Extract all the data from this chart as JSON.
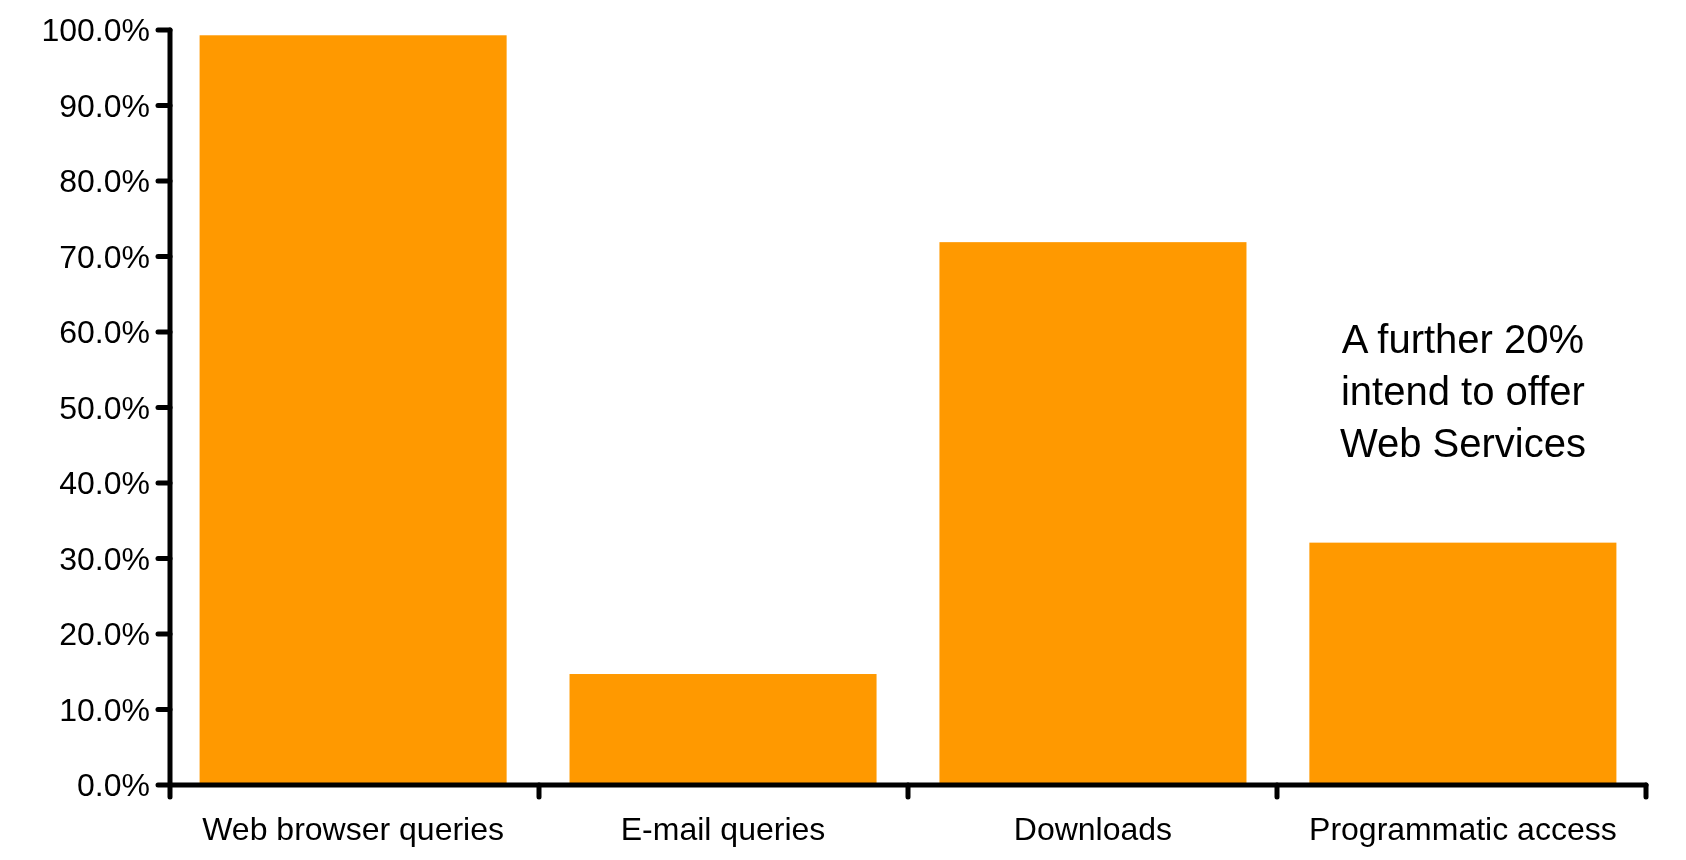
{
  "chart_data": {
    "type": "bar",
    "categories": [
      "Web browser queries",
      "E-mail queries",
      "Downloads",
      "Programmatic access"
    ],
    "values": [
      99.3,
      14.7,
      71.9,
      32.1
    ],
    "color": "#ff9900",
    "ylim": [
      0,
      100
    ],
    "yticks": [
      {
        "value": 0,
        "label": "0.0%"
      },
      {
        "value": 10,
        "label": "10.0%"
      },
      {
        "value": 20,
        "label": "20.0%"
      },
      {
        "value": 30,
        "label": "30.0%"
      },
      {
        "value": 40,
        "label": "40.0%"
      },
      {
        "value": 50,
        "label": "50.0%"
      },
      {
        "value": 60,
        "label": "60.0%"
      },
      {
        "value": 70,
        "label": "70.0%"
      },
      {
        "value": 80,
        "label": "80.0%"
      },
      {
        "value": 90,
        "label": "90.0%"
      },
      {
        "value": 100,
        "label": "100.0%"
      }
    ],
    "annotations": [
      "A further 20%\nintend to offer\nWeb Services"
    ],
    "grid": false
  }
}
